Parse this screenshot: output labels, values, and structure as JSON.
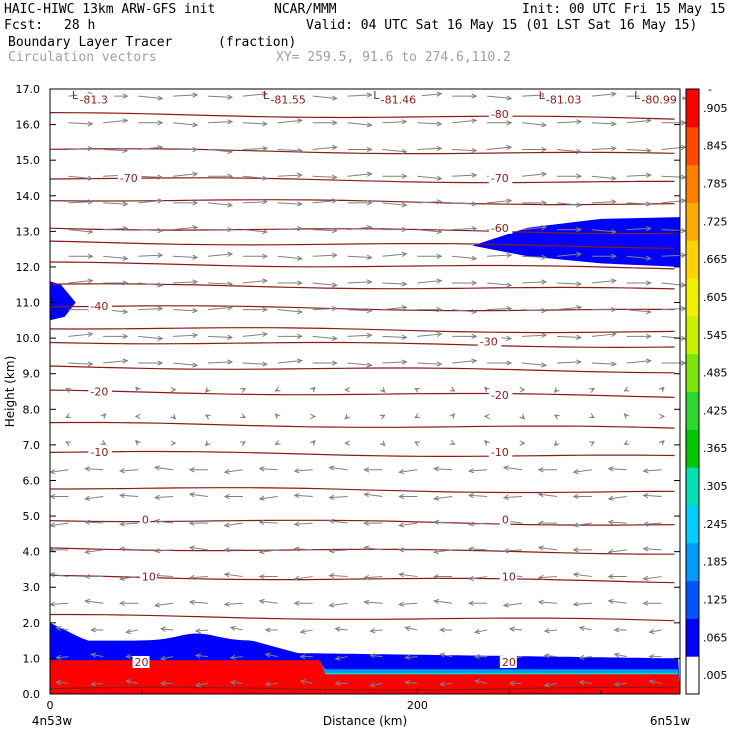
{
  "header": {
    "model": "HAIC-HIWC 13km ARW-GFS init",
    "org": "NCAR/MMM",
    "init": "Init: 00 UTC Fri 15 May 15",
    "fcst_label": "Fcst:",
    "fcst_value": "28 h",
    "valid": "Valid: 04 UTC Sat 16 May 15 (01 LST Sat 16 May 15)",
    "field": "Boundary Layer Tracer",
    "field_units": "(fraction)",
    "overlay": "Circulation vectors",
    "xy": "XY= 259.5, 91.6 to 274.6,110.2"
  },
  "colors": {
    "contour": "#8b1a1a",
    "vector": "#808080",
    "frame": "#000000"
  },
  "chart_data": {
    "type": "heatmap",
    "ylabel": "Height (km)",
    "xlabel": "Distance (km)",
    "ylim": [
      0,
      17
    ],
    "xlim": [
      0,
      343
    ],
    "y_ticks": [
      "0.0",
      "1.0",
      "2.0",
      "3.0",
      "4.0",
      "5.0",
      "6.0",
      "7.0",
      "8.0",
      "9.0",
      "10.0",
      "11.0",
      "12.0",
      "13.0",
      "14.0",
      "15.0",
      "16.0",
      "17.0"
    ],
    "x_ticks": [
      {
        "value": 0,
        "label": "0"
      },
      {
        "value": 200,
        "label": "200"
      }
    ],
    "x_endpoints": {
      "left": "4n53w",
      "right": "6n51w"
    },
    "colorbar": {
      "labels": [
        ".005",
        ".065",
        ".125",
        ".185",
        ".245",
        ".305",
        ".365",
        ".425",
        ".485",
        ".545",
        ".605",
        ".665",
        ".725",
        ".785",
        ".845",
        ".905"
      ],
      "top_label": "-",
      "colors": [
        "#ffffff",
        "#0000ff",
        "#0055ff",
        "#0099ff",
        "#00ccff",
        "#00e0b0",
        "#00c800",
        "#2ed62e",
        "#7ce60a",
        "#c8f000",
        "#f0f000",
        "#ffd200",
        "#ffaa00",
        "#ff7f00",
        "#ff4800",
        "#ff0000"
      ]
    },
    "temperature_contours": [
      {
        "label": "-81.3",
        "x": 16,
        "z": 16.7
      },
      {
        "label": "-81.55",
        "x": 120,
        "z": 16.7
      },
      {
        "label": "-81.46",
        "x": 180,
        "z": 16.7
      },
      {
        "label": "-81.03",
        "x": 270,
        "z": 16.7
      },
      {
        "label": "-80.99",
        "x": 322,
        "z": 16.7
      },
      {
        "label": "-80",
        "x": 240,
        "z": 16.3
      },
      {
        "label": "-70",
        "x": 38,
        "z": 14.5
      },
      {
        "label": "-70",
        "x": 240,
        "z": 14.5
      },
      {
        "label": "-60",
        "x": 240,
        "z": 13.1
      },
      {
        "label": "-40",
        "x": 22,
        "z": 10.9
      },
      {
        "label": "-30",
        "x": 234,
        "z": 9.9
      },
      {
        "label": "-20",
        "x": 22,
        "z": 8.5
      },
      {
        "label": "-20",
        "x": 240,
        "z": 8.4
      },
      {
        "label": "-10",
        "x": 22,
        "z": 6.8
      },
      {
        "label": "-10",
        "x": 240,
        "z": 6.8
      },
      {
        "label": "0",
        "x": 50,
        "z": 4.9
      },
      {
        "label": "0",
        "x": 246,
        "z": 4.9
      },
      {
        "label": "10",
        "x": 50,
        "z": 3.3
      },
      {
        "label": "10",
        "x": 246,
        "z": 3.3
      },
      {
        "label": "20",
        "x": 46,
        "z": 0.9
      },
      {
        "label": "20",
        "x": 246,
        "z": 0.9
      }
    ],
    "low_markers": [
      {
        "label": "L",
        "x": 12
      },
      {
        "label": "L",
        "x": 116
      },
      {
        "label": "L",
        "x": 176
      },
      {
        "label": "L",
        "x": 266
      },
      {
        "label": "L",
        "x": 318
      }
    ]
  }
}
